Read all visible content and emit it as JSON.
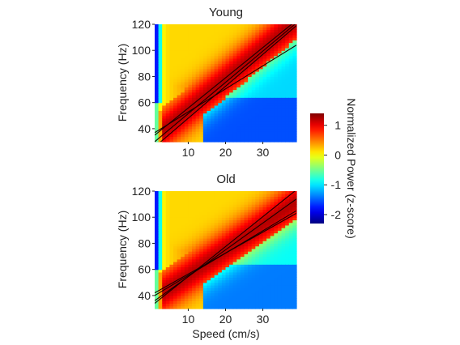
{
  "chart_data": [
    {
      "type": "heatmap",
      "title": "Young",
      "xlabel": "",
      "ylabel": "Frequency (Hz)",
      "xlim": [
        1,
        39
      ],
      "ylim": [
        30,
        120
      ],
      "xticks": [
        10,
        20,
        30
      ],
      "yticks": [
        40,
        60,
        80,
        100,
        120
      ],
      "fit_lines": [
        {
          "x": [
            1,
            39
          ],
          "y": [
            26,
            119
          ]
        },
        {
          "x": [
            1,
            39
          ],
          "y": [
            30,
            121
          ]
        },
        {
          "x": [
            1,
            39
          ],
          "y": [
            35,
            123
          ]
        },
        {
          "x": [
            1,
            39
          ],
          "y": [
            37,
            104
          ]
        }
      ]
    },
    {
      "type": "heatmap",
      "title": "Old",
      "xlabel": "Speed (cm/s)",
      "ylabel": "Frequency (Hz)",
      "xlim": [
        1,
        39
      ],
      "ylim": [
        30,
        120
      ],
      "xticks": [
        10,
        20,
        30
      ],
      "yticks": [
        40,
        60,
        80,
        100,
        120
      ],
      "fit_lines": [
        {
          "x": [
            1,
            39
          ],
          "y": [
            34,
            121
          ]
        },
        {
          "x": [
            1,
            39
          ],
          "y": [
            36,
            114
          ]
        },
        {
          "x": [
            1,
            39
          ],
          "y": [
            40,
            105
          ]
        },
        {
          "x": [
            1,
            39
          ],
          "y": [
            42,
            103
          ]
        }
      ]
    }
  ],
  "colorbar": {
    "label": "Normalized Power (z-score)",
    "range": [
      -2.3,
      1.4
    ],
    "ticks": [
      -2,
      -1,
      0,
      1
    ],
    "colormap": "jet"
  },
  "fit_line_color": "#1a0000"
}
